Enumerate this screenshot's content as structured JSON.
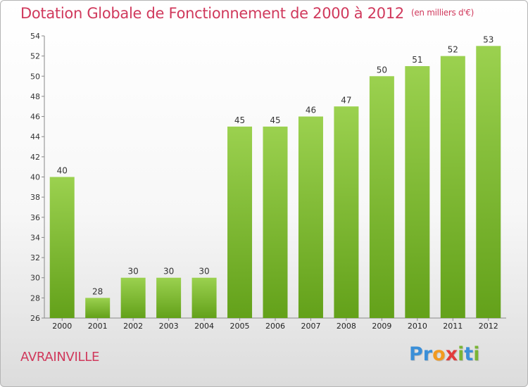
{
  "title": "Dotation Globale de Fonctionnement de 2000 à 2012",
  "unit_note": "(en milliers d'€)",
  "commune": "AVRAINVILLE",
  "logo": {
    "letters": [
      "P",
      "r",
      "o",
      "x",
      "i",
      "t",
      "i"
    ],
    "colors": [
      "#3a8fd8",
      "#3a8fd8",
      "#f29a1f",
      "#e23c3c",
      "#7ab534",
      "#3a8fd8",
      "#7ab534"
    ]
  },
  "colors": {
    "bar_top": "#9bd14f",
    "bar_bottom": "#63a11a",
    "axis": "#888888",
    "text_accent": "#d0395c"
  },
  "chart_data": {
    "type": "bar",
    "categories": [
      "2000",
      "2001",
      "2002",
      "2003",
      "2004",
      "2005",
      "2006",
      "2007",
      "2008",
      "2009",
      "2010",
      "2011",
      "2012"
    ],
    "values": [
      40,
      28,
      30,
      30,
      30,
      45,
      45,
      46,
      47,
      50,
      51,
      52,
      53
    ],
    "title": "Dotation Globale de Fonctionnement de 2000 à 2012",
    "ylim": [
      26,
      54
    ],
    "yticks": [
      26,
      28,
      30,
      32,
      34,
      36,
      38,
      40,
      42,
      44,
      46,
      48,
      50,
      52,
      54
    ],
    "grid": false,
    "data_labels": true
  }
}
